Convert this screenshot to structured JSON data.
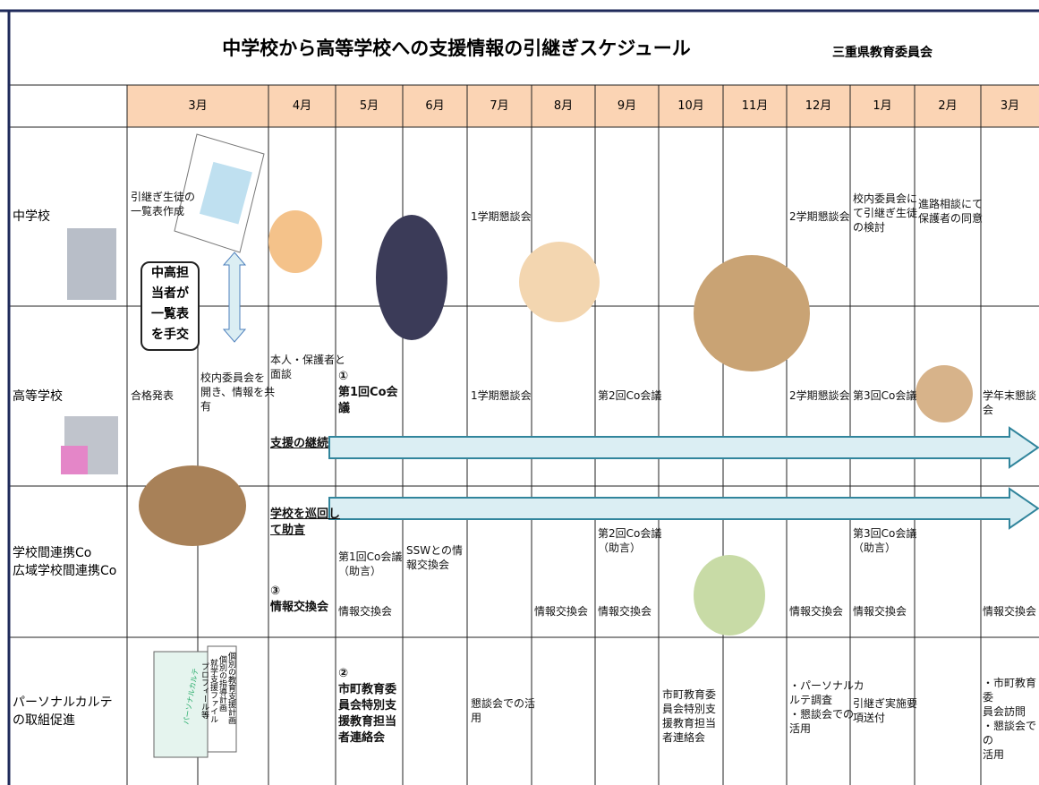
{
  "header": {
    "title": "中学校から高等学校への支援情報の引継ぎスケジュール",
    "publisher": "三重県教育委員会"
  },
  "months": [
    "3月",
    "4月",
    "5月",
    "6月",
    "7月",
    "8月",
    "9月",
    "10月",
    "11月",
    "12月",
    "1月",
    "2月",
    "3月"
  ],
  "rows": [
    {
      "label": "中学校",
      "items": [
        "引継ぎ生徒の\n一覧表作成",
        "1学期懇談会",
        "2学期懇談会",
        "校内委員会に\nて引継ぎ生徒\nの検討",
        "進路相談にて\n保護者の同意"
      ]
    },
    {
      "label": "高等学校",
      "items": [
        "合格発表",
        "校内委員会を\n開き、情報を共\n有",
        "本人・保護者と\n面談",
        "①\n第1回Co会\n議",
        "1学期懇談会",
        "第2回Co会議",
        "2学期懇談会",
        "第3回Co会議",
        "学年末懇談会",
        "支援の継続"
      ]
    },
    {
      "label": "学校間連携Co\n広域学校間連携Co",
      "items": [
        "学校を巡回し\nて助言",
        "③\n情報交換会",
        "第1回Co会議\n（助言）",
        "情報交換会",
        "SSWとの情\n報交換会",
        "情報交換会",
        "第2回Co会議\n（助言）",
        "情報交換会",
        "情報交換会",
        "第3回Co会議\n（助言）",
        "情報交換会",
        "情報交換会"
      ]
    },
    {
      "label": "パーソナルカルテ\nの取組促進",
      "items": [
        "②\n市町教育委\n員会特別支\n援教育担当\n者連絡会",
        "懇談会での活\n用",
        "市町教育委\n員会特別支\n援教育担当\n者連絡会",
        "・パーソナルカ\nルテ調査\n・懇談会での\n活用",
        "引継ぎ実施要\n項送付",
        "・市町教育委\n員会訪問\n・懇談会での\n活用"
      ]
    }
  ],
  "callout": "中高担\n当者が\n一覧表\nを手交",
  "booklet": {
    "cover": "パーソナルカルテ",
    "spines": [
      "個別の教育支援計画",
      "個別の指導計画",
      "就学支援ファイル",
      "プロフィール等"
    ]
  }
}
